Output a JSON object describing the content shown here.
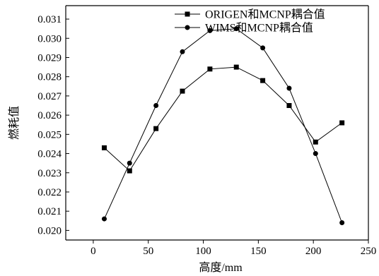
{
  "chart_data": {
    "type": "line",
    "xlabel": "高度/mm",
    "ylabel": "燃耗值",
    "xlim": [
      -25,
      250
    ],
    "ylim": [
      0.0195,
      0.0317
    ],
    "xticks": [
      0,
      50,
      100,
      150,
      200,
      250
    ],
    "yticks": [
      0.02,
      0.021,
      0.022,
      0.023,
      0.024,
      0.025,
      0.026,
      0.027,
      0.028,
      0.029,
      0.03,
      0.031
    ],
    "legend_position": "top-right",
    "grid": false,
    "series": [
      {
        "name": "ORIGEN和MCNP耦合值",
        "marker": "square",
        "x": [
          10,
          33,
          57,
          81,
          106,
          130,
          154,
          178,
          202,
          226
        ],
        "y": [
          0.0243,
          0.0231,
          0.0253,
          0.02725,
          0.0284,
          0.0285,
          0.0278,
          0.0265,
          0.0246,
          0.0256
        ]
      },
      {
        "name": "WIMS和MCNP耦合值",
        "marker": "circle",
        "x": [
          10,
          33,
          57,
          81,
          106,
          130,
          154,
          178,
          202,
          226
        ],
        "y": [
          0.0206,
          0.0235,
          0.0265,
          0.0293,
          0.0304,
          0.0305,
          0.0295,
          0.0274,
          0.024,
          0.0204
        ]
      }
    ]
  }
}
